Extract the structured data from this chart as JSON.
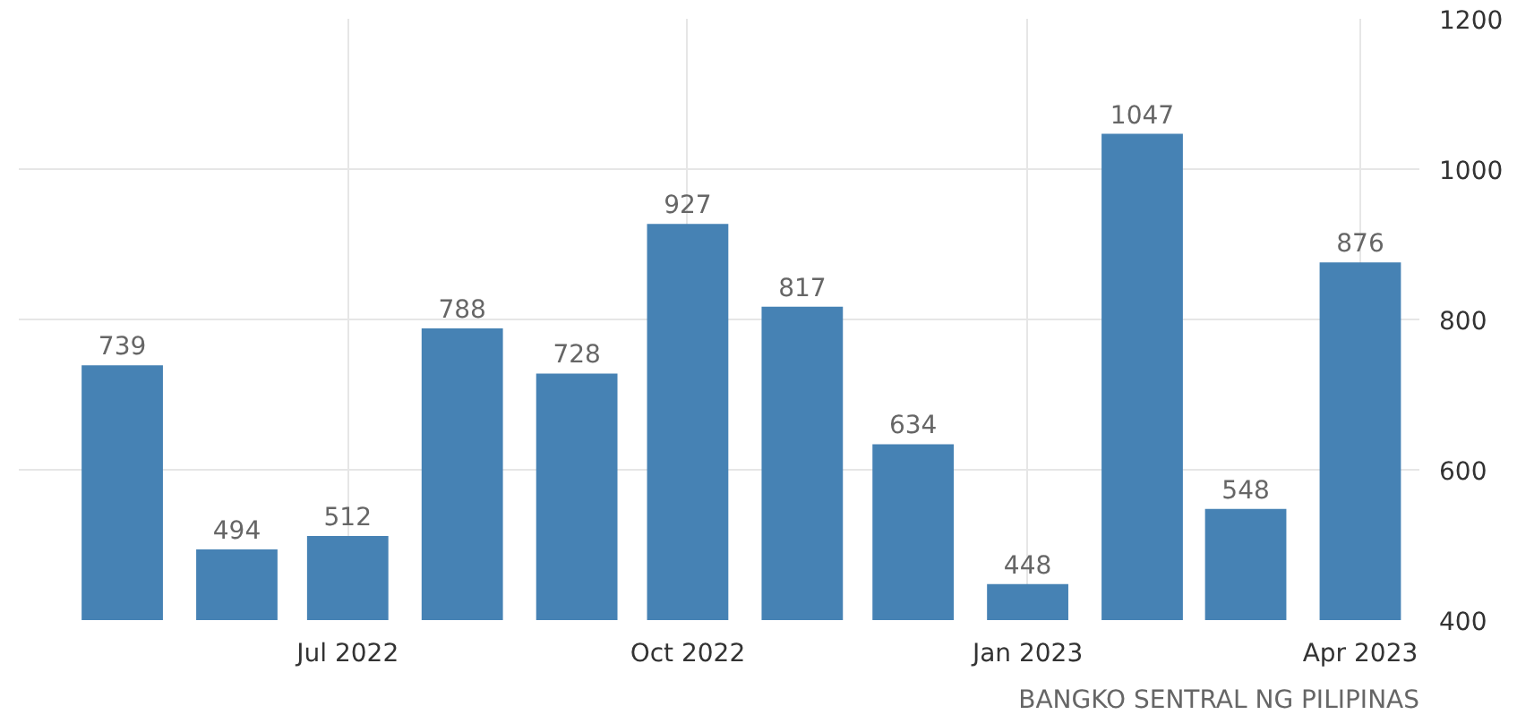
{
  "chart_data": {
    "type": "bar",
    "x": [
      "2022-05",
      "2022-06",
      "2022-07",
      "2022-08",
      "2022-09",
      "2022-10",
      "2022-11",
      "2022-12",
      "2023-01",
      "2023-02",
      "2023-03",
      "2023-04"
    ],
    "values": [
      739,
      494,
      512,
      788,
      728,
      927,
      817,
      634,
      448,
      1047,
      548,
      876
    ],
    "color": "#4682b4",
    "data_labels": true,
    "ylim": [
      400,
      1200
    ],
    "yticks": [
      400,
      600,
      800,
      1000,
      1200
    ],
    "xlim": [
      "2022-04-03",
      "2023-04-17"
    ],
    "xticks": [
      {
        "value": "2022-07",
        "label": "Jul 2022"
      },
      {
        "value": "2022-10",
        "label": "Oct 2022"
      },
      {
        "value": "2023-01",
        "label": "Jan 2023"
      },
      {
        "value": "2023-04",
        "label": "Apr 2023"
      }
    ],
    "grid": true,
    "annotations": [
      "BANGKO SENTRAL NG PILIPINAS"
    ]
  }
}
